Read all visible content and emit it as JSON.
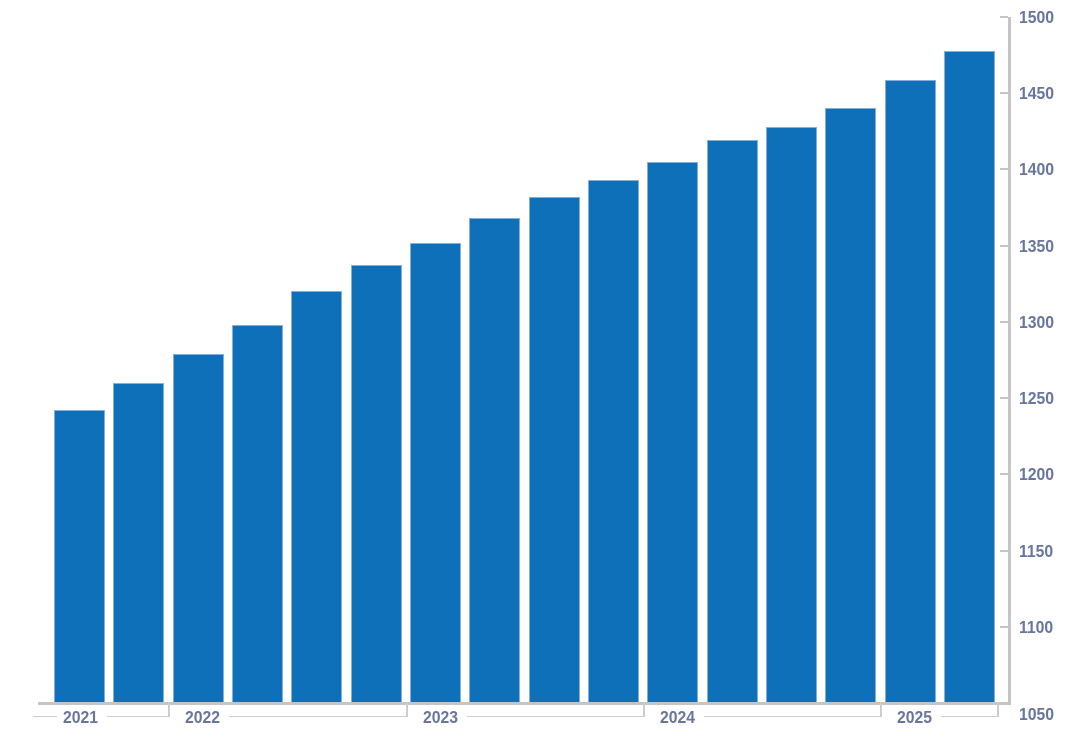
{
  "chart": {
    "background": "#ffffff",
    "bar_color": "#0e70b9",
    "bar_border_color": "#85aed8",
    "axis_line_color": "#c5c5c5",
    "bracket_line_color": "#cdcdcd",
    "label_color": "#67759f"
  },
  "chart_data": {
    "type": "bar",
    "title": "",
    "values": [
      1242,
      1260,
      1279,
      1298,
      1320,
      1337,
      1352,
      1368,
      1382,
      1393,
      1405,
      1419,
      1428,
      1440,
      1459,
      1478
    ],
    "x_axis": {
      "groups": [
        {
          "label": "2021",
          "bars": 2
        },
        {
          "label": "2022",
          "bars": 4
        },
        {
          "label": "2023",
          "bars": 4
        },
        {
          "label": "2024",
          "bars": 4
        },
        {
          "label": "2025",
          "bars": 2
        }
      ]
    },
    "y_axis": {
      "side": "right",
      "min": 1050,
      "max": 1500,
      "tick_step": 50,
      "ticks": [
        1050,
        1100,
        1150,
        1200,
        1250,
        1300,
        1350,
        1400,
        1450,
        1500
      ]
    },
    "grid": false,
    "legend": false
  }
}
